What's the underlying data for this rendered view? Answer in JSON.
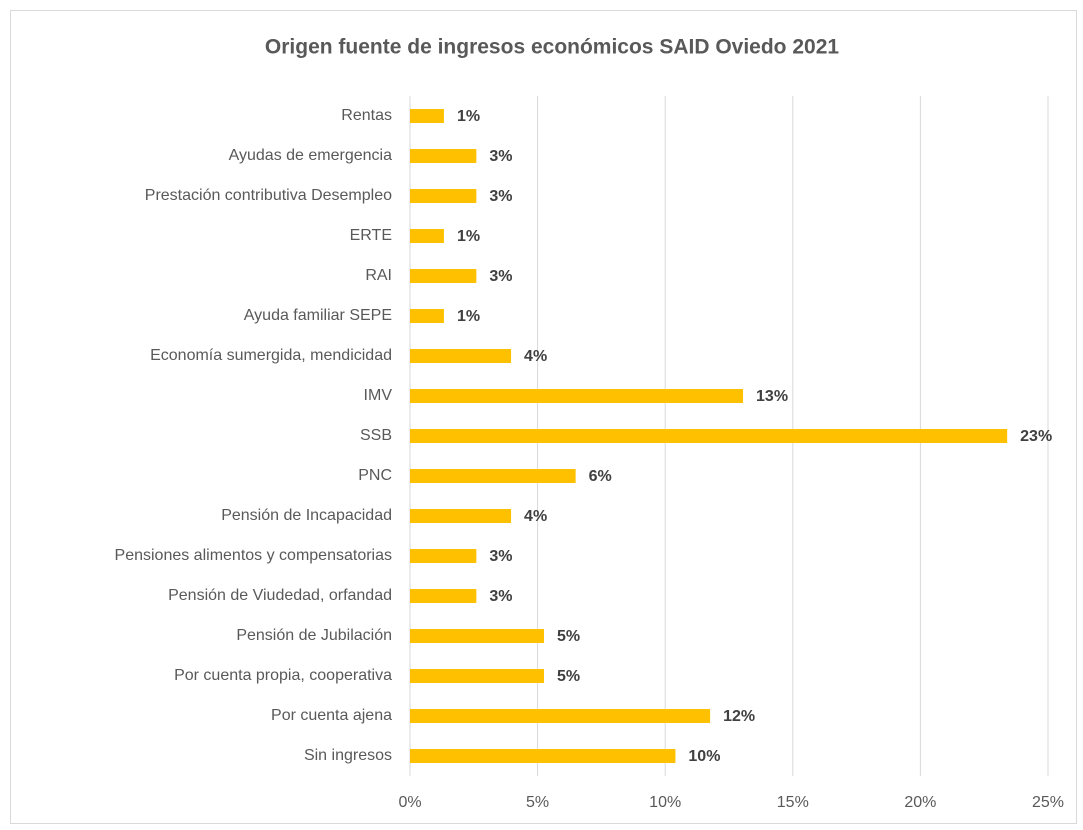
{
  "chart_data": {
    "type": "hbar",
    "title": "Origen fuente de ingresos económicos SAID Oviedo 2021",
    "categories": [
      "Rentas",
      "Ayudas de emergencia",
      "Prestación contributiva Desempleo",
      "ERTE",
      "RAI",
      "Ayuda familiar SEPE",
      "Economía sumergida, mendicidad",
      "IMV",
      "SSB",
      "PNC",
      "Pensión de Incapacidad",
      "Pensiones alimentos y compensatorias",
      "Pensión de Viudedad, orfandad",
      "Pensión de Jubilación",
      "Por cuenta propia, cooperativa",
      "Por cuenta ajena",
      "Sin ingresos"
    ],
    "values": [
      1.33,
      2.6,
      2.6,
      1.33,
      2.6,
      1.33,
      3.96,
      13.05,
      23.4,
      6.49,
      3.96,
      2.6,
      2.6,
      5.25,
      5.25,
      11.76,
      10.4
    ],
    "value_labels": [
      "1%",
      "3%",
      "3%",
      "1%",
      "3%",
      "1%",
      "4%",
      "13%",
      "23%",
      "6%",
      "4%",
      "3%",
      "3%",
      "5%",
      "5%",
      "12%",
      "10%"
    ],
    "color": "#ffc000",
    "xlim": [
      0,
      25
    ],
    "xticks": [
      {
        "value": 0,
        "label": "0%"
      },
      {
        "value": 5,
        "label": "5%"
      },
      {
        "value": 10,
        "label": "10%"
      },
      {
        "value": 15,
        "label": "15%"
      },
      {
        "value": 20,
        "label": "20%"
      },
      {
        "value": 25,
        "label": "25%"
      }
    ],
    "grid": true
  }
}
